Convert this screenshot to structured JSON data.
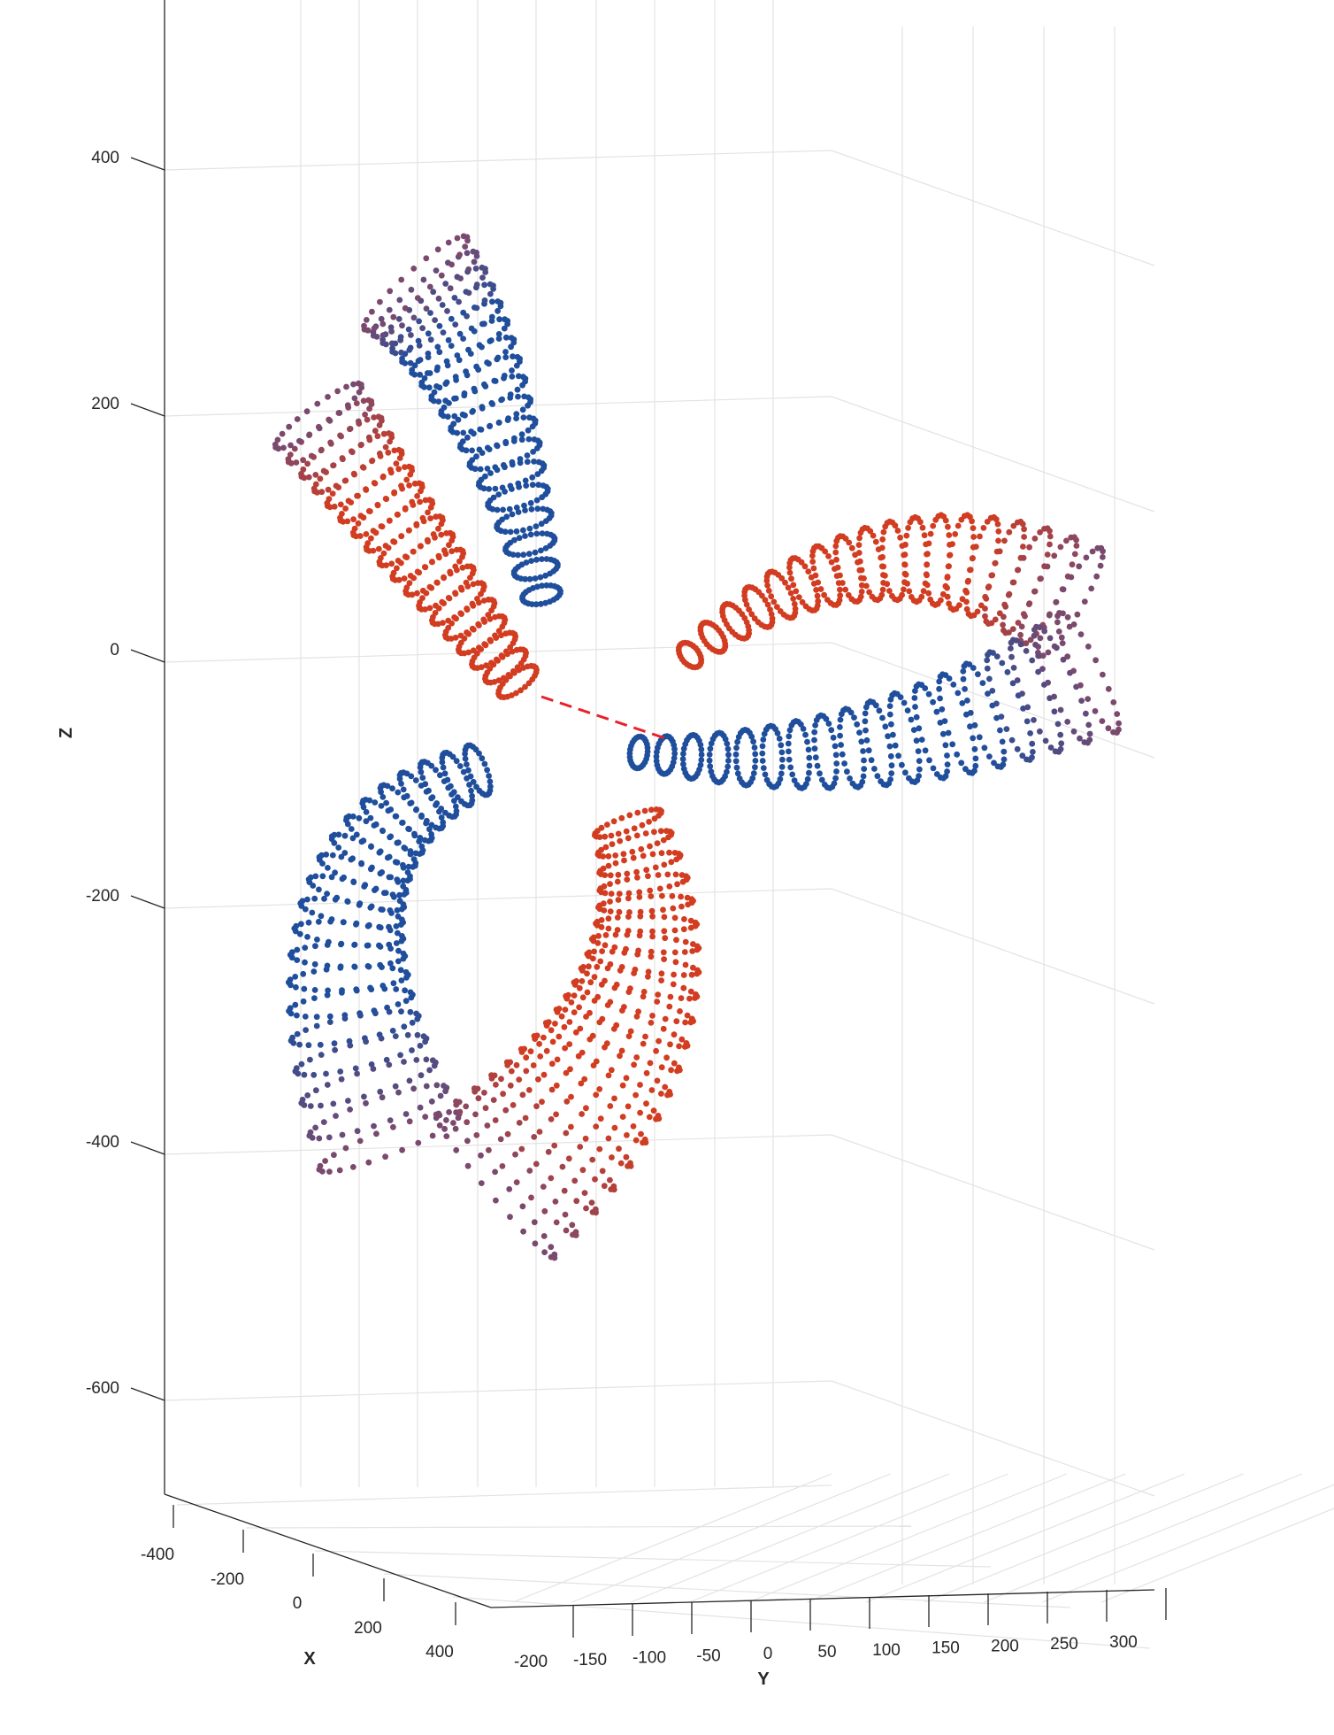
{
  "chart_data": {
    "type": "scatter",
    "subtype": "3d-scatter",
    "title": "",
    "xlabel": "X",
    "ylabel": "Y",
    "zlabel": "Z",
    "x_ticks": [
      "-400",
      "-200",
      "0",
      "200",
      "400"
    ],
    "y_ticks": [
      "-200",
      "-150",
      "-100",
      "-50",
      "0",
      "50",
      "100",
      "150",
      "200",
      "250",
      "300"
    ],
    "z_ticks": [
      "400",
      "200",
      "0",
      "-200",
      "-400",
      "-600"
    ],
    "xlim": [
      -450,
      450
    ],
    "ylim": [
      -220,
      340
    ],
    "zlim": [
      -680,
      520
    ],
    "grid": true,
    "colors": {
      "blue": "#1f4e9c",
      "red": "#d23c20",
      "mid": "#7a4a6e"
    },
    "series": [
      {
        "color": "red",
        "description": "upper-left blade, red face"
      },
      {
        "color": "blue",
        "description": "upper-left blade, blue face"
      },
      {
        "color": "red",
        "description": "right blade, red face"
      },
      {
        "color": "blue",
        "description": "right blade, blue face"
      },
      {
        "color": "blue",
        "description": "lower-left blade, blue face"
      },
      {
        "color": "red",
        "description": "lower blade, red face"
      },
      {
        "color": "red",
        "description": "hub dashed line"
      }
    ]
  }
}
